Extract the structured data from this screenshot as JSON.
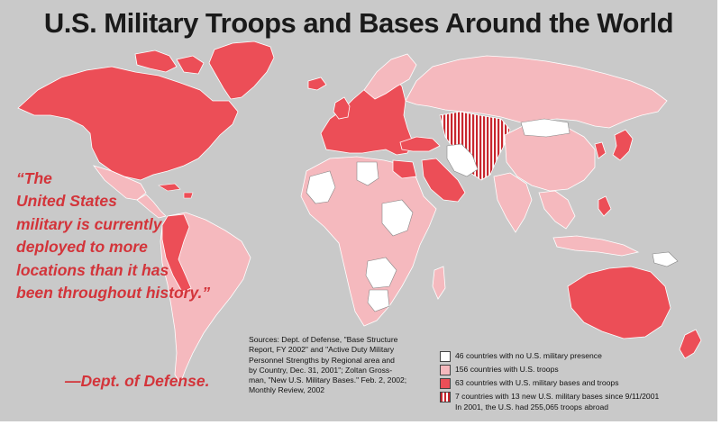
{
  "title": "U.S. Military Troops and Bases Around the World",
  "quote": {
    "lines": [
      "“The",
      "United States",
      "military is currently",
      "deployed to more",
      "locations than it has",
      "been throughout history.”"
    ],
    "attribution": "—Dept. of Defense."
  },
  "sources": {
    "lines": [
      "Sources: Dept. of Defense, \"Base Structure",
      "Report, FY 2002\" and \"Active Duty Military",
      "Personnel Strengths by Regional area and",
      "by Country, Dec. 31, 2001\"; Zoltan Gross-",
      "man, \"New U.S. Military Bases.\" Feb. 2, 2002;",
      "Monthly Review, 2002"
    ]
  },
  "legend": {
    "items": [
      {
        "label": "46 countries with no U.S. military presence",
        "color": "#ffffff"
      },
      {
        "label": "156 countries with U.S. troops",
        "color": "#f5b9be"
      },
      {
        "label": "63 countries with U.S. military bases and troops",
        "color": "#ec4e57"
      },
      {
        "label": "7 countries with 13 new U.S. military bases since 9/11/2001",
        "color": "#d3343a",
        "pattern": "vertical-stripes"
      }
    ],
    "footnote": "In 2001, the U.S. had 255,065 troops abroad"
  },
  "colors": {
    "background": "#c9c9c9",
    "no_presence": "#ffffff",
    "troops": "#f5b9be",
    "bases_and_troops": "#ec4e57",
    "new_bases": "#d3343a",
    "quote_text": "#d3343a"
  }
}
